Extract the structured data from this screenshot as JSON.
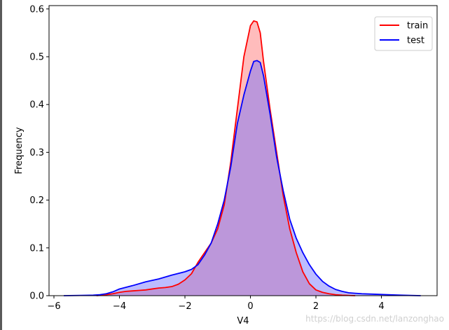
{
  "chart_data": {
    "type": "area",
    "title": "",
    "xlabel": "V4",
    "ylabel": "Frequency",
    "xlim": [
      -6.15,
      5.7
    ],
    "ylim": [
      0,
      0.607
    ],
    "xticks": [
      -6,
      -4,
      -2,
      0,
      2,
      4
    ],
    "xtick_labels": [
      "−6",
      "−4",
      "−2",
      "0",
      "2",
      "4"
    ],
    "yticks": [
      0.0,
      0.1,
      0.2,
      0.3,
      0.4,
      0.5,
      0.6
    ],
    "ytick_labels": [
      "0.0",
      "0.1",
      "0.2",
      "0.3",
      "0.4",
      "0.5",
      "0.6"
    ],
    "grid": false,
    "legend_position": "top-right",
    "series": [
      {
        "name": "train",
        "color": "#ff0000",
        "fill": "#ff6b6b",
        "fill_opacity": 0.45,
        "x": [
          -4.7,
          -4.4,
          -4.2,
          -4.0,
          -3.8,
          -3.6,
          -3.4,
          -3.2,
          -3.0,
          -2.8,
          -2.6,
          -2.4,
          -2.2,
          -2.0,
          -1.8,
          -1.6,
          -1.4,
          -1.2,
          -1.0,
          -0.8,
          -0.6,
          -0.4,
          -0.2,
          0.0,
          0.1,
          0.2,
          0.3,
          0.4,
          0.6,
          0.8,
          1.0,
          1.2,
          1.4,
          1.6,
          1.8,
          2.0,
          2.2,
          2.4,
          2.6,
          2.8,
          3.0,
          3.2
        ],
        "y": [
          0.0,
          0.002,
          0.004,
          0.007,
          0.009,
          0.01,
          0.011,
          0.012,
          0.014,
          0.016,
          0.017,
          0.019,
          0.024,
          0.033,
          0.046,
          0.07,
          0.09,
          0.11,
          0.14,
          0.19,
          0.28,
          0.39,
          0.5,
          0.565,
          0.575,
          0.573,
          0.55,
          0.49,
          0.39,
          0.3,
          0.21,
          0.14,
          0.09,
          0.05,
          0.025,
          0.012,
          0.007,
          0.004,
          0.002,
          0.001,
          0.0005,
          0.0
        ]
      },
      {
        "name": "test",
        "color": "#0000ff",
        "fill": "#6b6bff",
        "fill_opacity": 0.45,
        "x": [
          -5.7,
          -5.2,
          -4.8,
          -4.6,
          -4.4,
          -4.2,
          -4.0,
          -3.6,
          -3.2,
          -2.8,
          -2.4,
          -2.0,
          -1.8,
          -1.6,
          -1.4,
          -1.2,
          -1.0,
          -0.8,
          -0.6,
          -0.4,
          -0.2,
          0.0,
          0.1,
          0.2,
          0.3,
          0.4,
          0.6,
          0.8,
          1.0,
          1.2,
          1.4,
          1.6,
          1.8,
          2.0,
          2.2,
          2.4,
          2.6,
          2.8,
          3.0,
          3.4,
          3.8,
          4.2,
          4.6,
          5.2
        ],
        "y": [
          0.0,
          0.0005,
          0.001,
          0.002,
          0.004,
          0.008,
          0.014,
          0.021,
          0.029,
          0.035,
          0.043,
          0.05,
          0.055,
          0.065,
          0.085,
          0.11,
          0.15,
          0.2,
          0.27,
          0.36,
          0.42,
          0.47,
          0.49,
          0.492,
          0.488,
          0.46,
          0.38,
          0.29,
          0.22,
          0.16,
          0.12,
          0.09,
          0.065,
          0.045,
          0.03,
          0.02,
          0.013,
          0.009,
          0.006,
          0.004,
          0.003,
          0.002,
          0.001,
          0.0
        ]
      }
    ]
  },
  "watermark": "https://blog.csdn.net/lanzonghao"
}
